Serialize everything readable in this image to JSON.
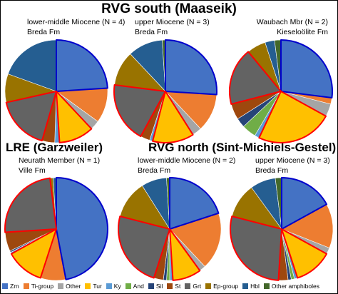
{
  "chart_data": [
    {
      "type": "pie",
      "title": "RVG south (Maaseik)",
      "label1": "lower-middle Miocene (N = 4)",
      "label2": "Breda Fm",
      "slices": [
        {
          "cat": "Zrn",
          "value": 24
        },
        {
          "cat": "Ti-group",
          "value": 11
        },
        {
          "cat": "Other",
          "value": 3
        },
        {
          "cat": "Tur",
          "value": 11
        },
        {
          "cat": "Ky",
          "value": 1.5
        },
        {
          "cat": "St",
          "value": 4
        },
        {
          "cat": "Grt",
          "value": 17
        },
        {
          "cat": "Ep-group",
          "value": 9
        },
        {
          "cat": "Hbl",
          "value": 19.5
        }
      ]
    },
    {
      "type": "pie",
      "title": "",
      "label1": "upper Miocene (N = 3)",
      "label2": "Breda Fm",
      "slices": [
        {
          "cat": "Zrn",
          "value": 26
        },
        {
          "cat": "Ti-group",
          "value": 12
        },
        {
          "cat": "Other",
          "value": 3
        },
        {
          "cat": "Tur",
          "value": 13
        },
        {
          "cat": "Ky",
          "value": 1
        },
        {
          "cat": "St",
          "value": 3
        },
        {
          "cat": "Grt",
          "value": 19
        },
        {
          "cat": "Ep-group",
          "value": 11
        },
        {
          "cat": "Hbl",
          "value": 11
        },
        {
          "cat": "Other amphiboles",
          "value": 1
        }
      ]
    },
    {
      "type": "pie",
      "title": "",
      "label1": "Waubach Mbr (N = 2)",
      "label2": "Kieseloölite Fm",
      "slices": [
        {
          "cat": "Zrn",
          "value": 27
        },
        {
          "cat": "Ti-group",
          "value": 2
        },
        {
          "cat": "Other",
          "value": 4
        },
        {
          "cat": "Tur",
          "value": 24
        },
        {
          "cat": "Ky",
          "value": 1.5
        },
        {
          "cat": "And",
          "value": 4.5
        },
        {
          "cat": "Sil",
          "value": 3
        },
        {
          "cat": "St",
          "value": 5
        },
        {
          "cat": "Grt",
          "value": 18
        },
        {
          "cat": "Ep-group",
          "value": 6
        },
        {
          "cat": "Hbl",
          "value": 3
        },
        {
          "cat": "Other amphiboles",
          "value": 2
        }
      ]
    },
    {
      "type": "pie",
      "title": "LRE (Garzweiler)",
      "label1": "Neurath Member (N = 1)",
      "label2": "Ville Fm",
      "slices": [
        {
          "cat": "Zrn",
          "value": 47
        },
        {
          "cat": "Ti-group",
          "value": 8
        },
        {
          "cat": "Tur",
          "value": 12
        },
        {
          "cat": "Ky",
          "value": 0.5
        },
        {
          "cat": "Sil",
          "value": 0.5
        },
        {
          "cat": "St",
          "value": 6
        },
        {
          "cat": "Grt",
          "value": 24
        },
        {
          "cat": "Ep-group",
          "value": 1
        },
        {
          "cat": "Hbl",
          "value": 1
        }
      ]
    },
    {
      "type": "pie",
      "title": "RVG north (Sint-Michiels-Gestel)",
      "label1": "lower-middle Miocene (N = 2)",
      "label2": "Breda Fm",
      "slices": [
        {
          "cat": "Zrn",
          "value": 20
        },
        {
          "cat": "Ti-group",
          "value": 18
        },
        {
          "cat": "Other",
          "value": 2
        },
        {
          "cat": "Tur",
          "value": 9
        },
        {
          "cat": "Ky",
          "value": 1
        },
        {
          "cat": "And",
          "value": 1
        },
        {
          "cat": "Sil",
          "value": 1
        },
        {
          "cat": "St",
          "value": 3
        },
        {
          "cat": "Grt",
          "value": 24
        },
        {
          "cat": "Ep-group",
          "value": 12
        },
        {
          "cat": "Hbl",
          "value": 8
        },
        {
          "cat": "Other amphiboles",
          "value": 1
        }
      ]
    },
    {
      "type": "pie",
      "title": "",
      "label1": "upper Miocene (N = 3)",
      "label2": "Breda Fm",
      "slices": [
        {
          "cat": "Zrn",
          "value": 17
        },
        {
          "cat": "Ti-group",
          "value": 14
        },
        {
          "cat": "Other",
          "value": 2
        },
        {
          "cat": "Tur",
          "value": 12
        },
        {
          "cat": "Ky",
          "value": 1
        },
        {
          "cat": "And",
          "value": 1
        },
        {
          "cat": "Sil",
          "value": 1
        },
        {
          "cat": "St",
          "value": 3
        },
        {
          "cat": "Grt",
          "value": 28
        },
        {
          "cat": "Ep-group",
          "value": 11
        },
        {
          "cat": "Hbl",
          "value": 8
        },
        {
          "cat": "Other amphiboles",
          "value": 2
        }
      ]
    }
  ],
  "legend": [
    {
      "name": "Zrn",
      "color": "#4472c4"
    },
    {
      "name": "Ti-group",
      "color": "#ed7d31"
    },
    {
      "name": "Other",
      "color": "#a5a5a5"
    },
    {
      "name": "Tur",
      "color": "#ffc000"
    },
    {
      "name": "Ky",
      "color": "#5b9bd5"
    },
    {
      "name": "And",
      "color": "#70ad47"
    },
    {
      "name": "Sil",
      "color": "#264478"
    },
    {
      "name": "St",
      "color": "#9e480e"
    },
    {
      "name": "Grt",
      "color": "#636363"
    },
    {
      "name": "Ep-group",
      "color": "#997300"
    },
    {
      "name": "Hbl",
      "color": "#255e91"
    },
    {
      "name": "Other amphiboles",
      "color": "#43682b"
    }
  ],
  "outline_colors": {
    "Zrn": "#0000cc",
    "Tur": "#ff0000",
    "Grt": "#ff0000"
  }
}
